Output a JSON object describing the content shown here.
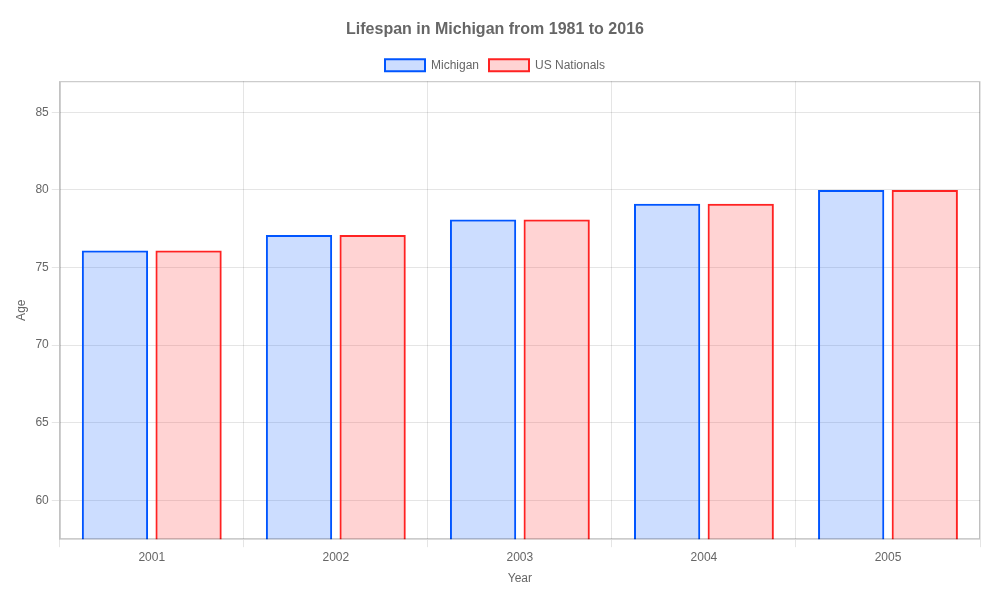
{
  "chart_data": {
    "type": "bar",
    "title": "Lifespan in Michigan from 1981 to 2016",
    "categories": [
      "2001",
      "2002",
      "2003",
      "2004",
      "2005"
    ],
    "series": [
      {
        "name": "Michigan",
        "color": "#0055ff",
        "values": [
          76.1,
          77.1,
          78.1,
          79.1,
          80.0
        ]
      },
      {
        "name": "US Nationals",
        "color": "#ff2222",
        "values": [
          76.1,
          77.1,
          78.1,
          79.1,
          80.0
        ]
      }
    ],
    "xlabel": "Year",
    "ylabel": "Age",
    "ylim": [
      57.5,
      87
    ],
    "yticks": [
      60,
      65,
      70,
      75,
      80,
      85
    ],
    "grid": true,
    "legend": "top"
  }
}
